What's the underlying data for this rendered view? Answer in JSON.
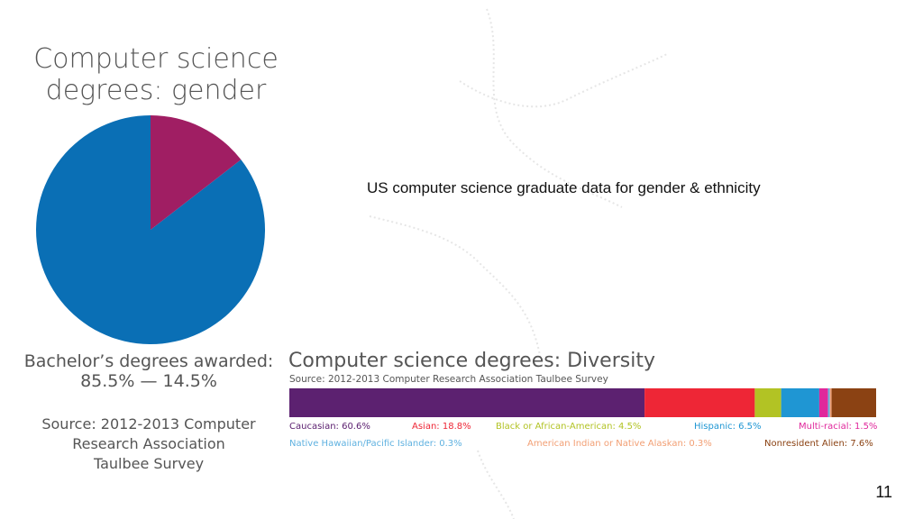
{
  "slide": {
    "subtitle": "US computer science graduate data for gender & ethnicity",
    "page_number": "11"
  },
  "gender_chart": {
    "title_line1": "Computer science",
    "title_line2": "degrees: gender",
    "caption_line1": "Bachelor’s degrees awarded:",
    "caption_line2": "85.5% — 14.5%",
    "source_line1": "Source: 2012-2013 Computer",
    "source_line2": "Research Association",
    "source_line3": "Taulbee Survey"
  },
  "diversity_chart": {
    "title": "Computer science degrees: Diversity",
    "source": "Source: 2012-2013 Computer Research Association Taulbee Survey",
    "legend": {
      "caucasian": "Caucasian: 60.6%",
      "asian": "Asian: 18.8%",
      "black": "Black or African-American: 4.5%",
      "hispanic": "Hispanic: 6.5%",
      "multiracial": "Multi-racial: 1.5%",
      "hawaiian": "Native Hawaiian/Pacific Islander: 0.3%",
      "native_american": "American Indian or Native Alaskan: 0.3%",
      "nonresident": "Nonresident Alien: 7.6%"
    }
  },
  "chart_data": [
    {
      "type": "pie",
      "title": "Computer science degrees: gender",
      "categories": [
        "",
        ""
      ],
      "values": [
        85.5,
        14.5
      ],
      "colors": [
        "#0a6fb5",
        "#a01e63"
      ],
      "start_angle_deg": 0
    },
    {
      "type": "bar",
      "orientation": "horizontal-stacked",
      "title": "Computer science degrees: Diversity",
      "categories": [
        "Caucasian",
        "Asian",
        "Black or African-American",
        "Hispanic",
        "Multi-racial",
        "Native Hawaiian/Pacific Islander",
        "American Indian or Native Alaskan",
        "Nonresident Alien"
      ],
      "values": [
        60.6,
        18.8,
        4.5,
        6.5,
        1.5,
        0.3,
        0.3,
        7.6
      ],
      "colors": [
        "#5c2170",
        "#ee2636",
        "#b2c324",
        "#1f96d3",
        "#e0279b",
        "#5fb1e0",
        "#f29f74",
        "#8b4213"
      ]
    }
  ]
}
